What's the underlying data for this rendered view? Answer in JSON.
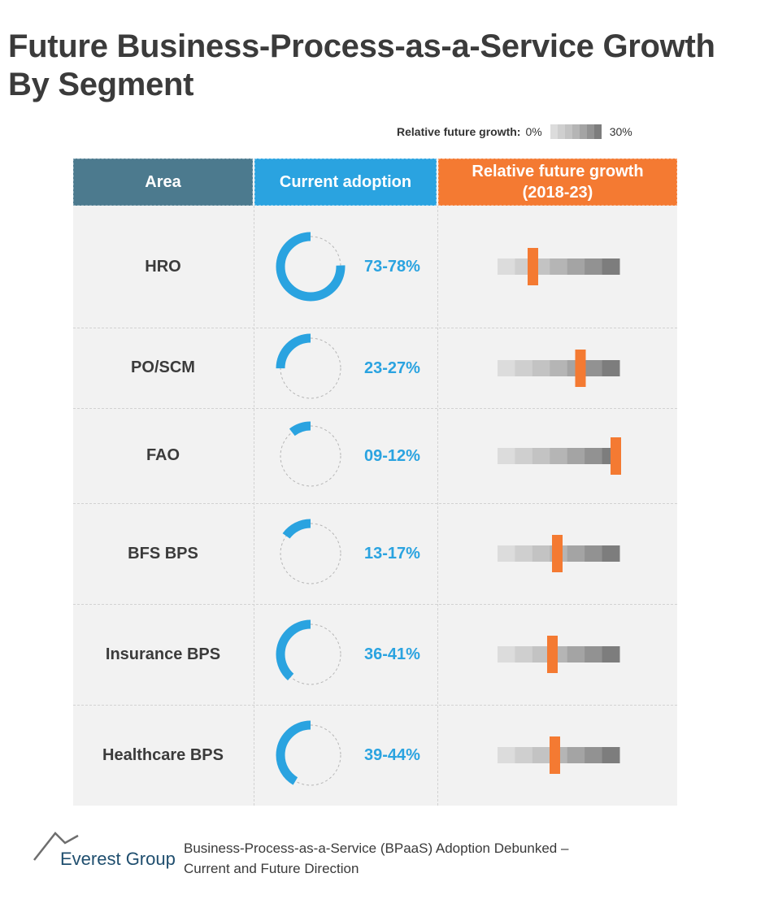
{
  "title_lines": [
    "Future Business-Process-as-a-Service Growth",
    "By Segment"
  ],
  "legend": {
    "label": "Relative future growth:",
    "min": "0%",
    "max": "30%"
  },
  "headers": {
    "area": "Area",
    "adoption": "Current adoption",
    "growth_line1": "Relative future growth",
    "growth_line2": "(2018-23)"
  },
  "colors": {
    "adoption": "#2aa3e0",
    "growth_marker": "#f47a32",
    "area_header": "#4c7a8e",
    "scale": [
      "#dcdcdc",
      "#cfcfcf",
      "#c3c3c3",
      "#b5b5b5",
      "#a4a4a4",
      "#929292",
      "#7d7d7d"
    ]
  },
  "chart_data": {
    "type": "table",
    "growth_scale_range": [
      0,
      30
    ],
    "rows": [
      {
        "area": "HRO",
        "adoption_label": "73-78%",
        "adoption_mid": 75.5,
        "growth_position": 0.29
      },
      {
        "area": "PO/SCM",
        "adoption_label": "23-27%",
        "adoption_mid": 25,
        "growth_position": 0.68
      },
      {
        "area": "FAO",
        "adoption_label": "09-12%",
        "adoption_mid": 10.5,
        "growth_position": 0.97
      },
      {
        "area": "BFS BPS",
        "adoption_label": "13-17%",
        "adoption_mid": 15,
        "growth_position": 0.49
      },
      {
        "area": "Insurance BPS",
        "adoption_label": "36-41%",
        "adoption_mid": 38.5,
        "growth_position": 0.45
      },
      {
        "area": "Healthcare BPS",
        "adoption_label": "39-44%",
        "adoption_mid": 41.5,
        "growth_position": 0.47
      }
    ]
  },
  "footer": {
    "logo_text": "Everest Group",
    "caption_lines": [
      "Business-Process-as-a-Service (BPaaS) Adoption Debunked –",
      "Current and Future Direction"
    ]
  }
}
